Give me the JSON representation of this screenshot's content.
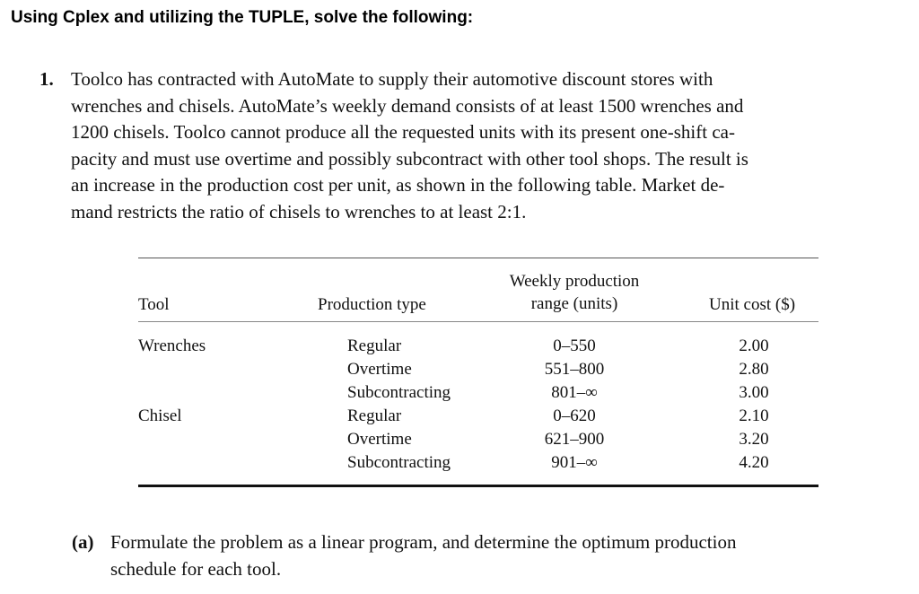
{
  "heading": "Using Cplex and utilizing the TUPLE, solve the following:",
  "problem": {
    "number": "1.",
    "lines": [
      "Toolco has contracted with AutoMate to supply their automotive discount stores with",
      "wrenches and chisels. AutoMate’s weekly demand consists of at least 1500 wrenches and",
      "1200 chisels. Toolco cannot produce all the requested units with its present one-shift ca-",
      "pacity and must use overtime and possibly subcontract with other tool shops. The result is",
      "an increase in the production cost per unit, as shown in the following table. Market de-",
      "mand restricts the ratio of chisels to wrenches to at least 2:1."
    ]
  },
  "table": {
    "headers": {
      "tool": "Tool",
      "production_type": "Production type",
      "range_line1": "Weekly production",
      "range_line2": "range (units)",
      "unit_cost": "Unit cost ($)"
    },
    "rows": [
      {
        "tool": "Wrenches",
        "type": "Regular",
        "range": "0–550",
        "cost": "2.00"
      },
      {
        "tool": "",
        "type": "Overtime",
        "range": "551–800",
        "cost": "2.80"
      },
      {
        "tool": "",
        "type": "Subcontracting",
        "range": "801–∞",
        "cost": "3.00"
      },
      {
        "tool": "Chisel",
        "type": "Regular",
        "range": "0–620",
        "cost": "2.10"
      },
      {
        "tool": "",
        "type": "Overtime",
        "range": "621–900",
        "cost": "3.20"
      },
      {
        "tool": "",
        "type": "Subcontracting",
        "range": "901–∞",
        "cost": "4.20"
      }
    ]
  },
  "part_a": {
    "label": "(a)",
    "lines": [
      "Formulate the problem as a linear program, and determine the optimum production",
      "schedule for each tool."
    ]
  }
}
